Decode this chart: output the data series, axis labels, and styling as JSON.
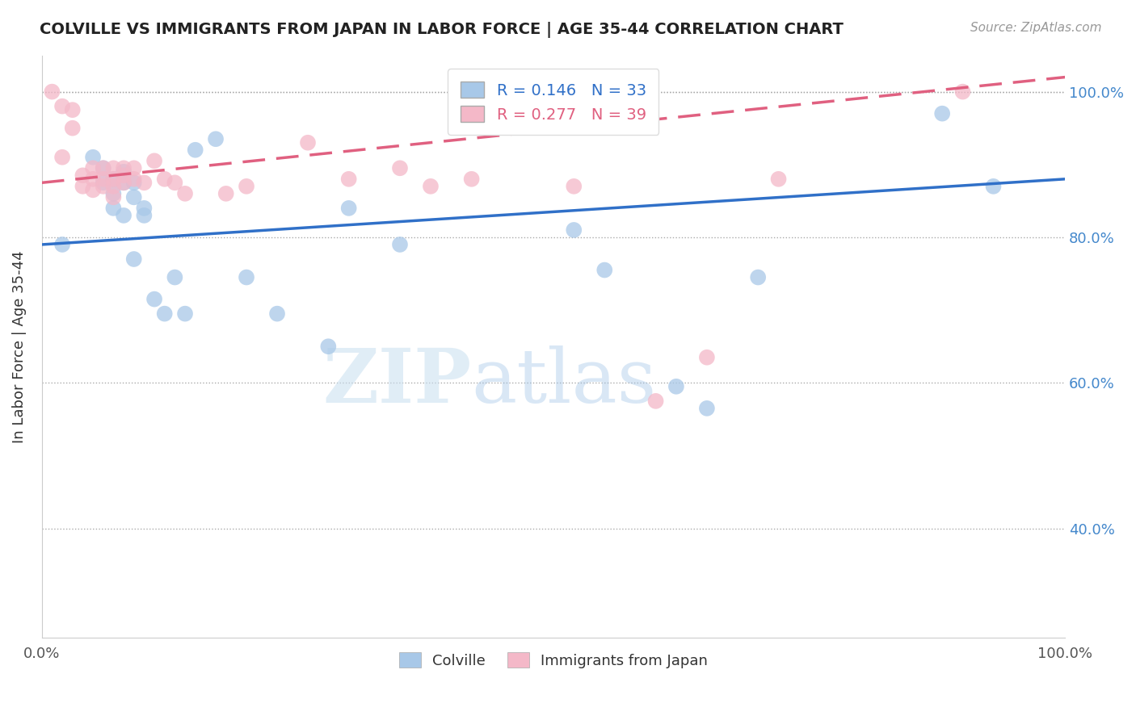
{
  "title": "COLVILLE VS IMMIGRANTS FROM JAPAN IN LABOR FORCE | AGE 35-44 CORRELATION CHART",
  "source": "Source: ZipAtlas.com",
  "ylabel": "In Labor Force | Age 35-44",
  "xlim": [
    0.0,
    1.0
  ],
  "ylim": [
    0.25,
    1.05
  ],
  "yticks": [
    0.4,
    0.6,
    0.8,
    1.0
  ],
  "ytick_labels": [
    "40.0%",
    "60.0%",
    "80.0%",
    "100.0%"
  ],
  "xticks": [
    0.0,
    0.2,
    0.4,
    0.6,
    0.8,
    1.0
  ],
  "xtick_labels": [
    "0.0%",
    "",
    "",
    "",
    "",
    "100.0%"
  ],
  "colville_color": "#a8c8e8",
  "japan_color": "#f4b8c8",
  "line_blue": "#3070c8",
  "line_pink": "#e06080",
  "legend_r_blue": "R = 0.146",
  "legend_n_blue": "N = 33",
  "legend_r_pink": "R = 0.277",
  "legend_n_pink": "N = 39",
  "watermark_zip": "ZIP",
  "watermark_atlas": "atlas",
  "colville_x": [
    0.02,
    0.05,
    0.06,
    0.06,
    0.07,
    0.07,
    0.07,
    0.08,
    0.08,
    0.08,
    0.09,
    0.09,
    0.09,
    0.1,
    0.1,
    0.11,
    0.12,
    0.13,
    0.14,
    0.15,
    0.17,
    0.2,
    0.23,
    0.28,
    0.3,
    0.35,
    0.52,
    0.55,
    0.62,
    0.65,
    0.7,
    0.88,
    0.93
  ],
  "colville_y": [
    0.79,
    0.91,
    0.895,
    0.875,
    0.88,
    0.86,
    0.84,
    0.89,
    0.875,
    0.83,
    0.875,
    0.855,
    0.77,
    0.84,
    0.83,
    0.715,
    0.695,
    0.745,
    0.695,
    0.92,
    0.935,
    0.745,
    0.695,
    0.65,
    0.84,
    0.79,
    0.81,
    0.755,
    0.595,
    0.565,
    0.745,
    0.97,
    0.87
  ],
  "japan_x": [
    0.01,
    0.02,
    0.02,
    0.03,
    0.03,
    0.04,
    0.04,
    0.05,
    0.05,
    0.05,
    0.06,
    0.06,
    0.06,
    0.07,
    0.07,
    0.07,
    0.07,
    0.08,
    0.08,
    0.08,
    0.09,
    0.09,
    0.1,
    0.11,
    0.12,
    0.13,
    0.14,
    0.18,
    0.2,
    0.26,
    0.3,
    0.35,
    0.38,
    0.42,
    0.52,
    0.6,
    0.65,
    0.72,
    0.9
  ],
  "japan_y": [
    1.0,
    0.98,
    0.91,
    0.975,
    0.95,
    0.885,
    0.87,
    0.895,
    0.88,
    0.865,
    0.895,
    0.88,
    0.87,
    0.895,
    0.88,
    0.87,
    0.855,
    0.895,
    0.885,
    0.875,
    0.895,
    0.88,
    0.875,
    0.905,
    0.88,
    0.875,
    0.86,
    0.86,
    0.87,
    0.93,
    0.88,
    0.895,
    0.87,
    0.88,
    0.87,
    0.575,
    0.635,
    0.88,
    1.0
  ]
}
